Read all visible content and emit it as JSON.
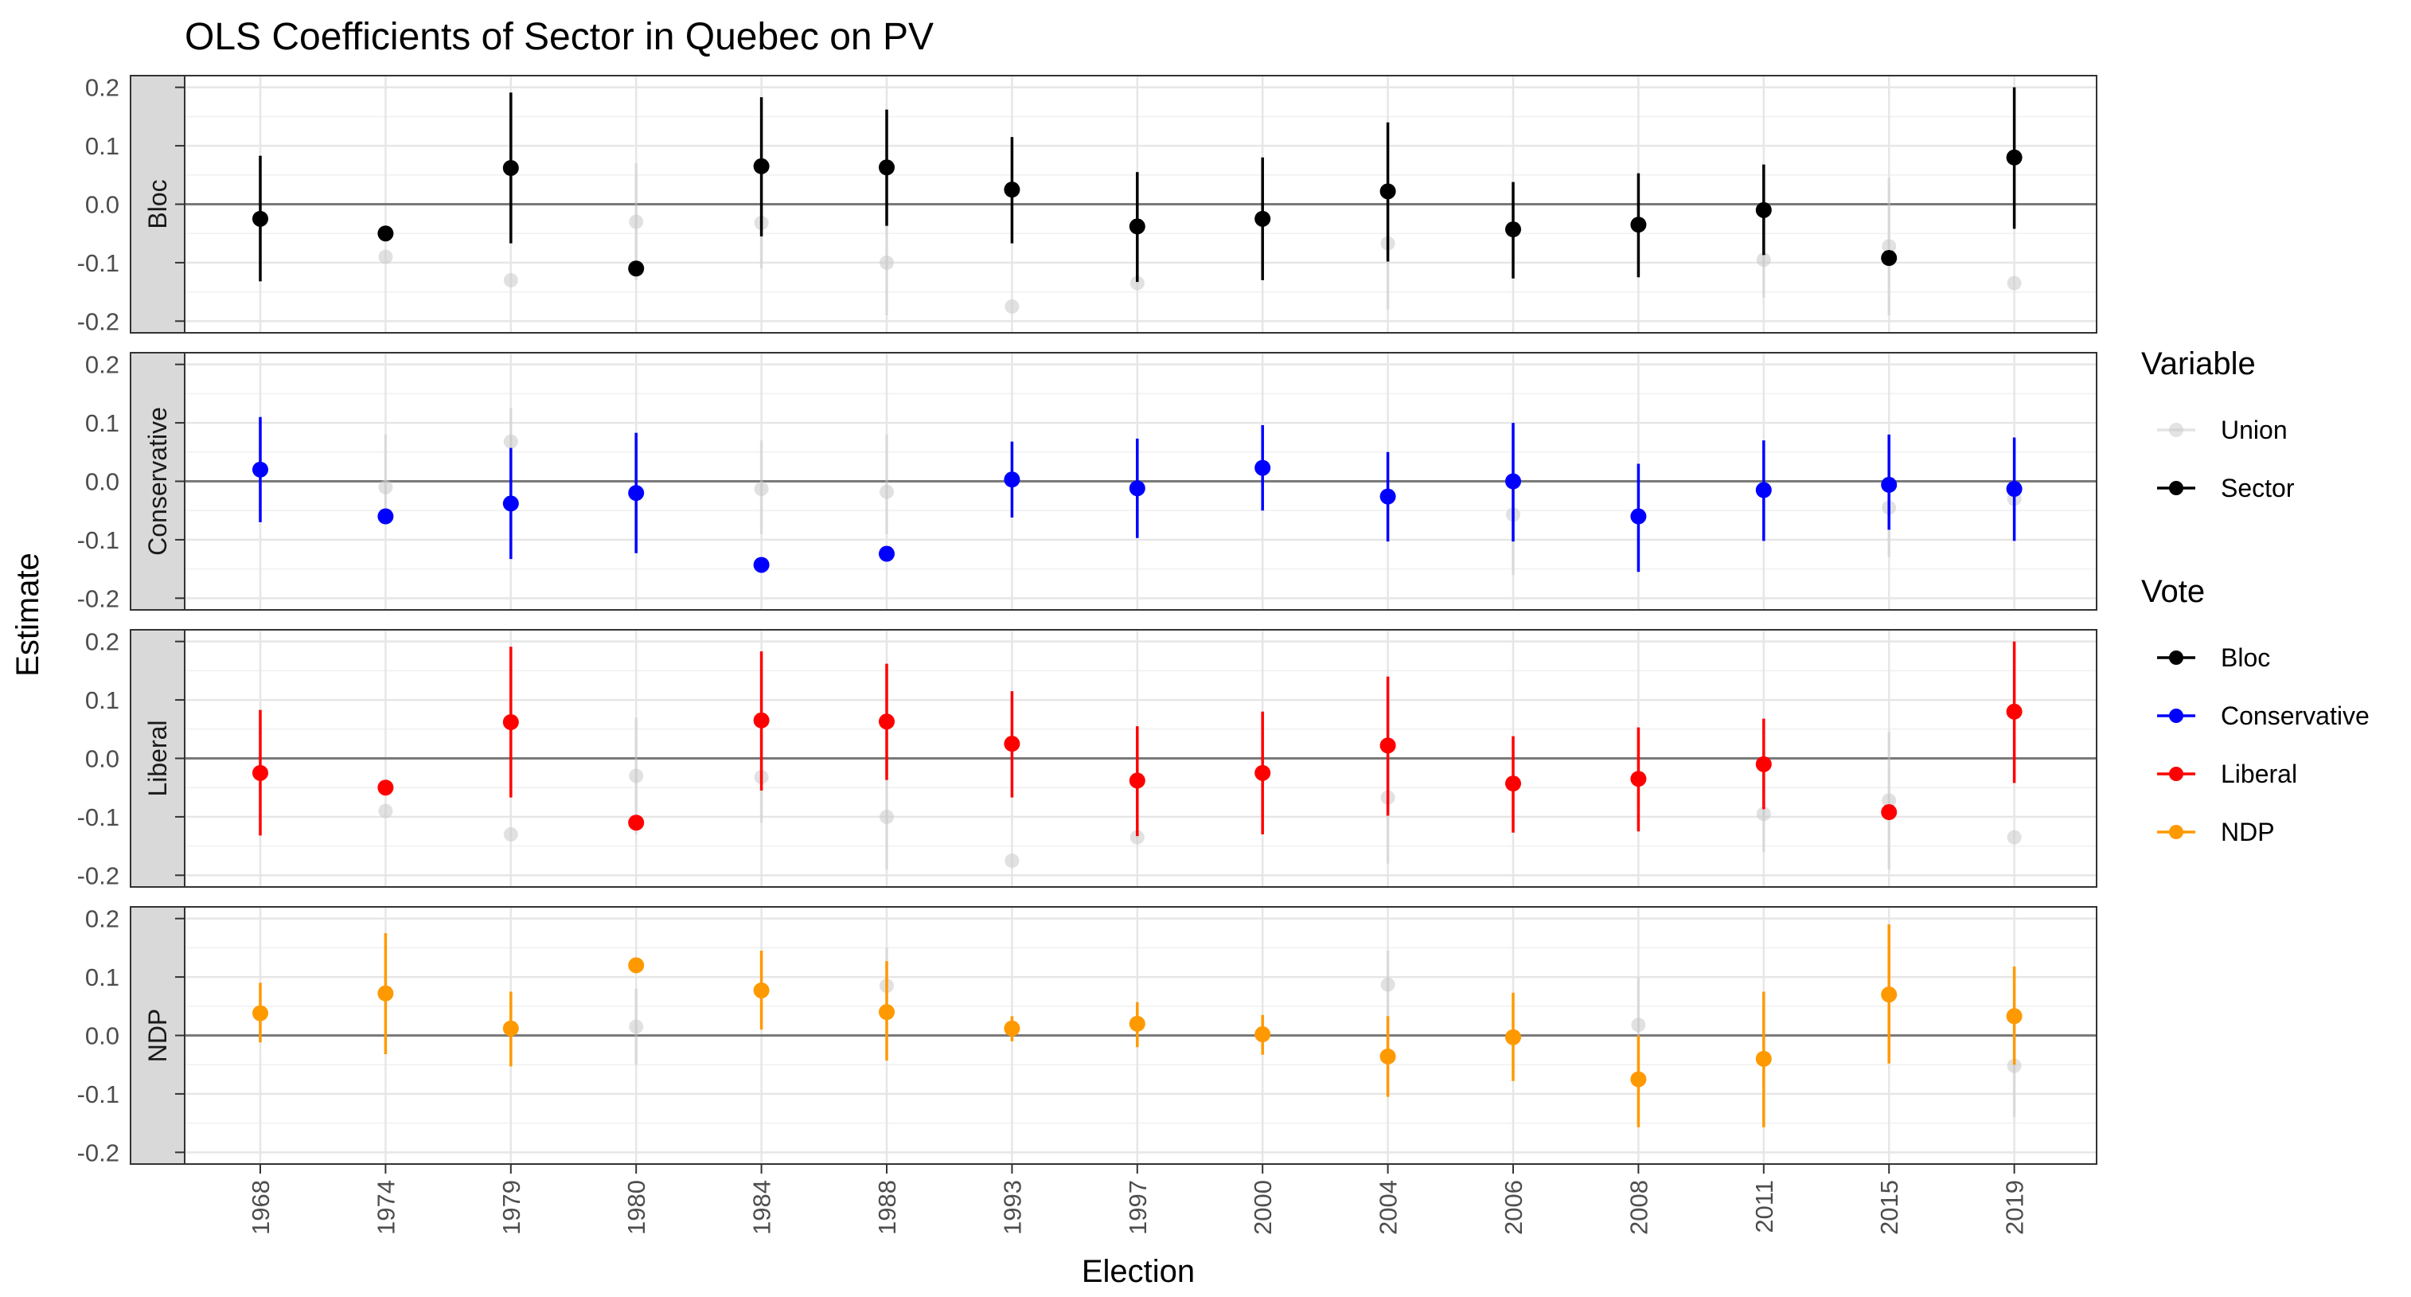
{
  "chart_data": {
    "type": "scatter",
    "title": "OLS Coefficients of Sector in Quebec on PV",
    "xlabel": "Election",
    "ylabel": "Estimate",
    "categories": [
      "1968",
      "1974",
      "1979",
      "1980",
      "1984",
      "1988",
      "1993",
      "1997",
      "2000",
      "2004",
      "2006",
      "2008",
      "2011",
      "2015",
      "2019"
    ],
    "ylim": [
      -0.22,
      0.22
    ],
    "yticks": [
      -0.2,
      -0.1,
      0.0,
      0.1,
      0.2
    ],
    "ytick_labels": [
      "-0.2",
      "-0.1",
      "0.0",
      "0.1",
      "0.2"
    ],
    "grid": true,
    "facet_strip": "left",
    "legend_position": "right",
    "legends": [
      {
        "title": "Variable",
        "entries": [
          {
            "label": "Union",
            "color": "#c8c8c8",
            "alpha": 0.5
          },
          {
            "label": "Sector",
            "color": "#000000",
            "alpha": 1
          }
        ]
      },
      {
        "title": "Vote",
        "entries": [
          {
            "label": "Bloc",
            "color": "#000000",
            "alpha": 1
          },
          {
            "label": "Conservative",
            "color": "#0000ff",
            "alpha": 1
          },
          {
            "label": "Liberal",
            "color": "#ff0000",
            "alpha": 1
          },
          {
            "label": "NDP",
            "color": "#ff9900",
            "alpha": 1
          }
        ]
      }
    ],
    "panels": [
      {
        "name": "Bloc",
        "color": "#000000",
        "sector": {
          "estimate": [
            -0.025,
            -0.05,
            0.062,
            -0.11,
            0.065,
            0.063,
            0.025,
            -0.038,
            -0.025,
            0.022,
            -0.043,
            -0.035,
            -0.01,
            -0.092,
            0.08
          ],
          "lower": [
            -0.132,
            null,
            -0.067,
            null,
            -0.055,
            -0.037,
            -0.067,
            -0.133,
            -0.13,
            -0.098,
            -0.127,
            -0.125,
            -0.087,
            null,
            -0.042
          ],
          "upper": [
            0.083,
            null,
            0.191,
            null,
            0.183,
            0.162,
            0.115,
            0.055,
            0.08,
            0.14,
            0.038,
            0.053,
            0.068,
            null,
            0.2
          ]
        },
        "union": {
          "estimate": [
            null,
            -0.09,
            -0.13,
            -0.03,
            -0.032,
            -0.1,
            -0.175,
            -0.135,
            null,
            -0.067,
            null,
            null,
            -0.095,
            -0.072,
            -0.135
          ],
          "lower": [
            null,
            null,
            null,
            -0.13,
            -0.11,
            -0.19,
            null,
            null,
            null,
            -0.18,
            null,
            null,
            -0.16,
            -0.19,
            null
          ],
          "upper": [
            null,
            null,
            null,
            0.07,
            0.04,
            0.0,
            null,
            null,
            null,
            0.04,
            null,
            null,
            -0.03,
            0.045,
            null
          ]
        }
      },
      {
        "name": "Conservative",
        "color": "#0000ff",
        "sector": {
          "estimate": [
            0.02,
            -0.06,
            -0.038,
            -0.02,
            -0.143,
            -0.124,
            0.003,
            -0.012,
            0.023,
            -0.026,
            0.0,
            -0.06,
            -0.015,
            -0.006,
            -0.013
          ],
          "lower": [
            -0.07,
            null,
            -0.133,
            -0.123,
            null,
            null,
            -0.062,
            -0.097,
            -0.05,
            -0.103,
            -0.103,
            -0.155,
            -0.102,
            -0.083,
            -0.102
          ],
          "upper": [
            0.11,
            null,
            0.057,
            0.083,
            null,
            null,
            0.068,
            0.073,
            0.096,
            0.05,
            0.1,
            0.03,
            0.07,
            0.08,
            0.075
          ]
        },
        "union": {
          "estimate": [
            null,
            -0.01,
            0.068,
            null,
            -0.013,
            -0.018,
            null,
            null,
            null,
            null,
            -0.057,
            null,
            null,
            -0.045,
            -0.03
          ],
          "lower": [
            null,
            -0.06,
            -0.01,
            null,
            -0.09,
            -0.09,
            null,
            null,
            null,
            null,
            -0.16,
            null,
            null,
            -0.13,
            -0.09
          ],
          "upper": [
            null,
            0.08,
            0.125,
            null,
            0.07,
            0.08,
            null,
            null,
            null,
            null,
            0.05,
            null,
            null,
            0.04,
            0.03
          ]
        }
      },
      {
        "name": "Liberal",
        "color": "#ff0000",
        "sector": {
          "estimate": [
            -0.025,
            -0.05,
            0.062,
            -0.11,
            0.065,
            0.063,
            0.025,
            -0.038,
            -0.025,
            0.022,
            -0.043,
            -0.035,
            -0.01,
            -0.092,
            0.08
          ],
          "lower": [
            -0.132,
            null,
            -0.067,
            null,
            -0.055,
            -0.037,
            -0.067,
            -0.133,
            -0.13,
            -0.098,
            -0.127,
            -0.125,
            -0.087,
            null,
            -0.042
          ],
          "upper": [
            0.083,
            null,
            0.191,
            null,
            0.183,
            0.162,
            0.115,
            0.055,
            0.08,
            0.14,
            0.038,
            0.053,
            0.068,
            null,
            0.2
          ]
        },
        "union": {
          "estimate": [
            null,
            -0.09,
            -0.13,
            -0.03,
            -0.032,
            -0.1,
            -0.175,
            -0.135,
            null,
            -0.067,
            null,
            null,
            -0.095,
            -0.072,
            -0.135
          ],
          "lower": [
            null,
            null,
            null,
            -0.13,
            -0.11,
            -0.19,
            null,
            null,
            null,
            -0.18,
            null,
            null,
            -0.16,
            -0.19,
            null
          ],
          "upper": [
            null,
            null,
            null,
            0.07,
            0.04,
            0.0,
            null,
            null,
            null,
            0.04,
            null,
            null,
            -0.03,
            0.045,
            null
          ]
        }
      },
      {
        "name": "NDP",
        "color": "#ff9900",
        "sector": {
          "estimate": [
            0.038,
            0.072,
            0.012,
            0.12,
            0.077,
            0.04,
            0.012,
            0.02,
            0.002,
            -0.036,
            -0.003,
            -0.075,
            -0.04,
            0.07,
            0.033
          ],
          "lower": [
            -0.012,
            -0.032,
            -0.053,
            null,
            0.01,
            -0.043,
            -0.01,
            -0.02,
            -0.033,
            -0.105,
            -0.078,
            -0.157,
            -0.157,
            -0.048,
            -0.05
          ],
          "upper": [
            0.09,
            0.175,
            0.075,
            null,
            0.145,
            0.127,
            0.033,
            0.057,
            0.035,
            0.033,
            0.073,
            0.0,
            0.075,
            0.19,
            0.118
          ]
        },
        "union": {
          "estimate": [
            null,
            null,
            null,
            0.015,
            null,
            0.085,
            null,
            null,
            null,
            0.087,
            null,
            0.018,
            null,
            null,
            -0.052
          ],
          "lower": [
            null,
            null,
            null,
            -0.05,
            null,
            0.0,
            null,
            null,
            null,
            0.0,
            null,
            -0.06,
            null,
            null,
            -0.14
          ],
          "upper": [
            null,
            null,
            null,
            0.08,
            null,
            0.15,
            null,
            null,
            null,
            0.145,
            null,
            0.1,
            null,
            null,
            0.03
          ]
        }
      }
    ]
  }
}
